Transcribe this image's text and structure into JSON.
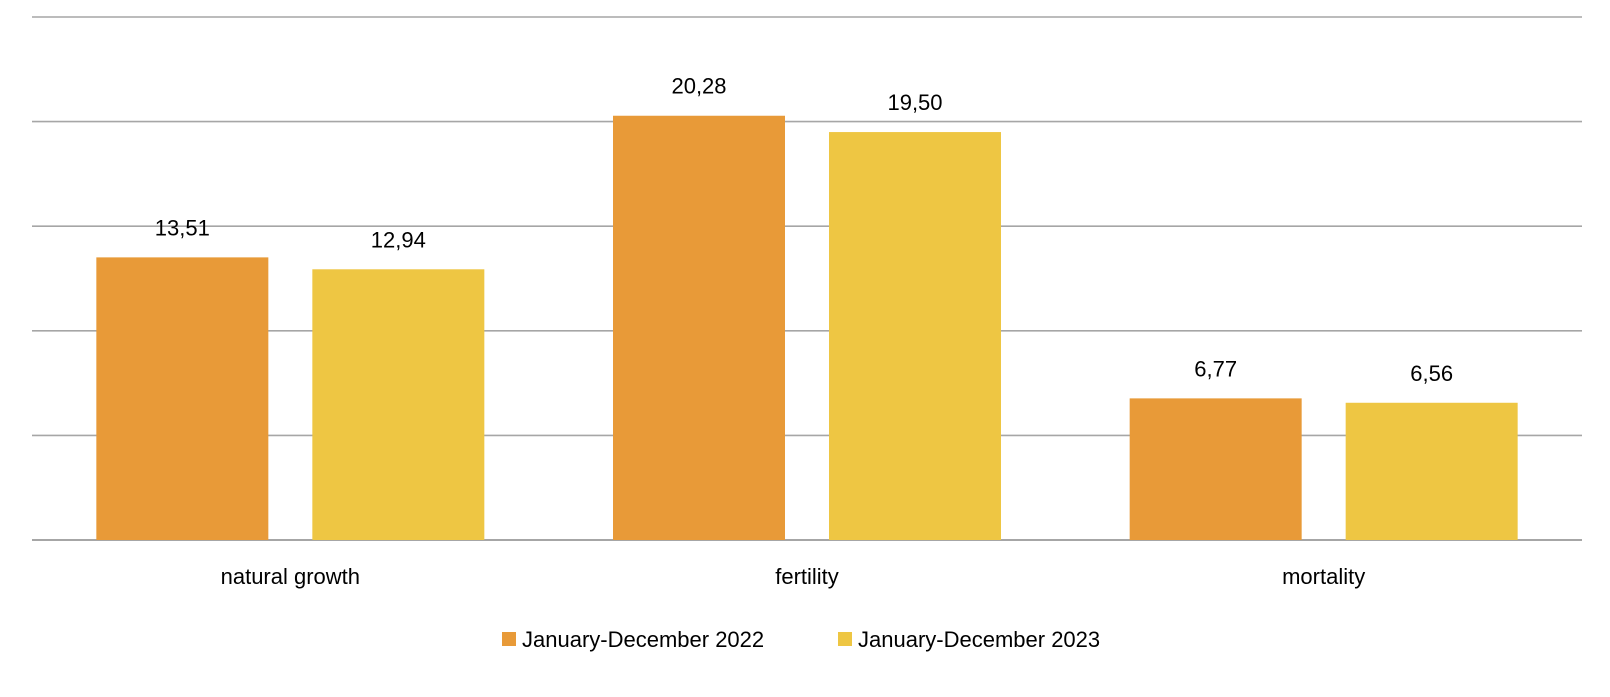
{
  "chart_data": {
    "type": "bar",
    "title": "",
    "xlabel": "",
    "ylabel": "",
    "categories": [
      "natural growth",
      "fertility",
      "mortality"
    ],
    "series": [
      {
        "name": "January-December 2022",
        "color": "#E89A38",
        "values": [
          13.51,
          20.28,
          6.77
        ],
        "labels": [
          "13,51",
          "20,28",
          "6,77"
        ]
      },
      {
        "name": "January-December 2023",
        "color": "#EEC643",
        "values": [
          12.94,
          19.5,
          6.56
        ],
        "labels": [
          "12,94",
          "19,50",
          "6,56"
        ]
      }
    ],
    "ylim": [
      0,
      25
    ],
    "gridlines": [
      0,
      5,
      10,
      15,
      20,
      25
    ],
    "grid": true,
    "legend": "bottom-center",
    "y_tick_labels_visible": false
  }
}
